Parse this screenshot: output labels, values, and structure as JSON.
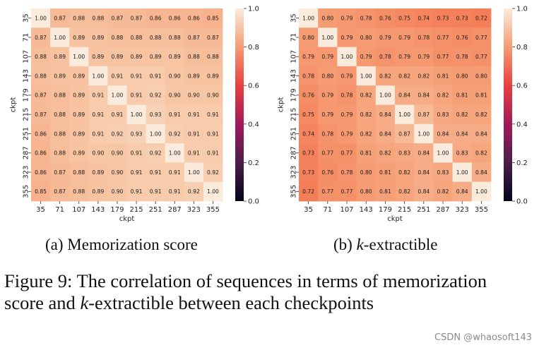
{
  "chart_data": [
    {
      "type": "heatmap",
      "title": "",
      "xlabel": "ckpt",
      "ylabel": "ckpt",
      "categories": [
        "35",
        "71",
        "107",
        "143",
        "179",
        "215",
        "251",
        "287",
        "323",
        "355"
      ],
      "values": [
        [
          1.0,
          0.87,
          0.88,
          0.88,
          0.87,
          0.87,
          0.86,
          0.86,
          0.86,
          0.85
        ],
        [
          0.87,
          1.0,
          0.89,
          0.89,
          0.88,
          0.88,
          0.88,
          0.88,
          0.87,
          0.87
        ],
        [
          0.88,
          0.89,
          1.0,
          0.89,
          0.89,
          0.89,
          0.89,
          0.89,
          0.88,
          0.88
        ],
        [
          0.88,
          0.89,
          0.89,
          1.0,
          0.91,
          0.91,
          0.91,
          0.9,
          0.89,
          0.89
        ],
        [
          0.87,
          0.88,
          0.89,
          0.91,
          1.0,
          0.91,
          0.92,
          0.9,
          0.9,
          0.9
        ],
        [
          0.87,
          0.88,
          0.89,
          0.91,
          0.91,
          1.0,
          0.93,
          0.91,
          0.91,
          0.91
        ],
        [
          0.86,
          0.88,
          0.89,
          0.91,
          0.92,
          0.93,
          1.0,
          0.92,
          0.91,
          0.91
        ],
        [
          0.86,
          0.88,
          0.89,
          0.9,
          0.9,
          0.91,
          0.92,
          1.0,
          0.91,
          0.91
        ],
        [
          0.86,
          0.87,
          0.88,
          0.89,
          0.9,
          0.91,
          0.91,
          0.91,
          1.0,
          0.92
        ],
        [
          0.85,
          0.87,
          0.88,
          0.89,
          0.9,
          0.91,
          0.91,
          0.91,
          0.92,
          1.0
        ]
      ],
      "colorbar": {
        "range": [
          0.0,
          1.0
        ],
        "ticks": [
          "0.0",
          "0.2",
          "0.4",
          "0.6",
          "0.8",
          "1.0"
        ],
        "colormap": "rocket"
      }
    },
    {
      "type": "heatmap",
      "title": "",
      "xlabel": "ckpt",
      "ylabel": "ckpt",
      "categories": [
        "35",
        "71",
        "107",
        "143",
        "179",
        "215",
        "251",
        "287",
        "323",
        "355"
      ],
      "values": [
        [
          1.0,
          0.8,
          0.79,
          0.78,
          0.76,
          0.75,
          0.74,
          0.73,
          0.73,
          0.72
        ],
        [
          0.8,
          1.0,
          0.79,
          0.8,
          0.79,
          0.79,
          0.78,
          0.77,
          0.76,
          0.77
        ],
        [
          0.79,
          0.79,
          1.0,
          0.79,
          0.78,
          0.79,
          0.79,
          0.77,
          0.78,
          0.77
        ],
        [
          0.78,
          0.8,
          0.79,
          1.0,
          0.82,
          0.82,
          0.82,
          0.81,
          0.8,
          0.8
        ],
        [
          0.76,
          0.79,
          0.78,
          0.82,
          1.0,
          0.84,
          0.84,
          0.82,
          0.81,
          0.81
        ],
        [
          0.75,
          0.79,
          0.79,
          0.82,
          0.84,
          1.0,
          0.87,
          0.83,
          0.82,
          0.82
        ],
        [
          0.74,
          0.78,
          0.79,
          0.82,
          0.84,
          0.87,
          1.0,
          0.84,
          0.84,
          0.84
        ],
        [
          0.73,
          0.77,
          0.77,
          0.81,
          0.82,
          0.83,
          0.84,
          1.0,
          0.83,
          0.82
        ],
        [
          0.73,
          0.76,
          0.78,
          0.8,
          0.81,
          0.82,
          0.84,
          0.83,
          1.0,
          0.84
        ],
        [
          0.72,
          0.77,
          0.77,
          0.8,
          0.81,
          0.82,
          0.84,
          0.82,
          0.84,
          1.0
        ]
      ],
      "colorbar": {
        "range": [
          0.0,
          1.0
        ],
        "ticks": [
          "0.0",
          "0.2",
          "0.4",
          "0.6",
          "0.8",
          "1.0"
        ],
        "colormap": "rocket"
      }
    }
  ],
  "subcaptions": [
    {
      "label": "(a)",
      "text": "Memorization score"
    },
    {
      "label": "(b)",
      "k": "k",
      "text": "-extractible"
    }
  ],
  "caption": {
    "prefix": "Figure 9: The correlation of sequences in terms of memorization score and ",
    "k": "k",
    "suffix": "-extractible between each checkpoints"
  },
  "watermark": "CSDN @whaosoft143"
}
